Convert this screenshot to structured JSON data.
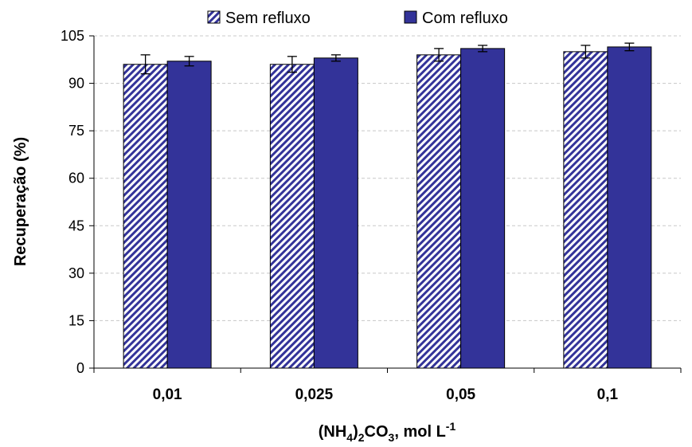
{
  "chart_data": {
    "type": "bar",
    "categories": [
      "0,01",
      "0,025",
      "0,05",
      "0,1"
    ],
    "series": [
      {
        "name": "Sem refluxo",
        "values": [
          96,
          96,
          99,
          100
        ],
        "errors": [
          3,
          2.5,
          2,
          2
        ],
        "fill": "hatched",
        "color": "#333399"
      },
      {
        "name": "Com refluxo",
        "values": [
          97,
          98,
          101,
          101.5
        ],
        "errors": [
          1.5,
          1,
          1,
          1.2
        ],
        "fill": "solid",
        "color": "#333399"
      }
    ],
    "ylim": [
      0,
      105
    ],
    "yticks": [
      "0",
      "15",
      "30",
      "45",
      "60",
      "75",
      "90",
      "105"
    ],
    "ylabel": "Recuperação (%)",
    "xlabel": {
      "pre": "(NH",
      "sub1": "4",
      "mid1": ")",
      "sub2": "2",
      "mid2": "CO",
      "sub3": "3",
      "mid3": ", mol L",
      "sup": "-1"
    },
    "grid": "horizontal dashed",
    "legend_position": "top"
  }
}
